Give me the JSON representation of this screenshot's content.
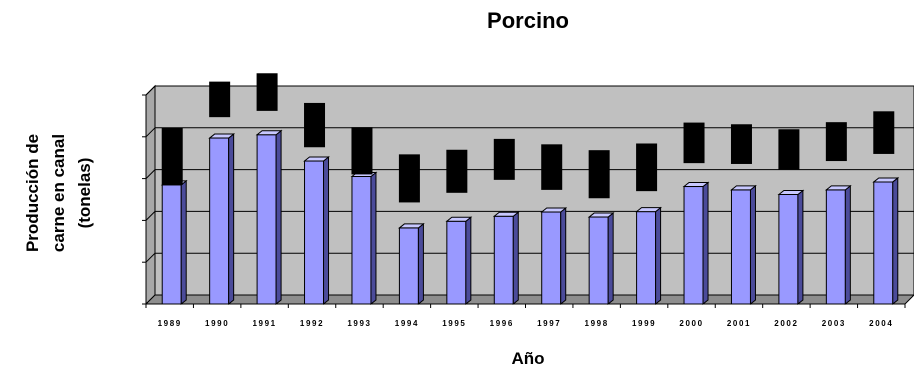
{
  "chart_data": {
    "type": "bar",
    "title": "Porcino",
    "xlabel": "Año",
    "ylabel_lines": [
      "Producción de",
      "carne en canal",
      "(tonelas)"
    ],
    "categories": [
      "1989",
      "1990",
      "1991",
      "1992",
      "1993",
      "1994",
      "1995",
      "1996",
      "1997",
      "1998",
      "1999",
      "2000",
      "2001",
      "2002",
      "2003",
      "2004"
    ],
    "series": [
      {
        "values": [
          2.85,
          3.97,
          4.05,
          3.42,
          3.05,
          1.82,
          1.98,
          2.1,
          2.2,
          2.08,
          2.21,
          2.81,
          2.73,
          2.62,
          2.73,
          2.92
        ]
      }
    ],
    "overlay_blocks": [
      [
        2.85,
        4.22
      ],
      [
        4.47,
        5.32
      ],
      [
        4.62,
        5.52
      ],
      [
        3.75,
        4.81
      ],
      [
        3.1,
        4.23
      ],
      [
        2.43,
        3.58
      ],
      [
        2.66,
        3.69
      ],
      [
        2.97,
        3.95
      ],
      [
        2.73,
        3.82
      ],
      [
        2.53,
        3.68
      ],
      [
        2.7,
        3.84
      ],
      [
        3.37,
        4.34
      ],
      [
        3.35,
        4.3
      ],
      [
        3.22,
        4.18
      ],
      [
        3.42,
        4.35
      ],
      [
        3.59,
        4.61
      ]
    ],
    "ylim": [
      0,
      5
    ],
    "grid": true,
    "colors": {
      "bar_front": "#9999ff",
      "bar_side": "#4b4b9a",
      "bar_top": "#c8c8ff",
      "plot_back": "#c0c0c0",
      "plot_floor": "#8e8e8e",
      "overlay": "#000000"
    }
  }
}
